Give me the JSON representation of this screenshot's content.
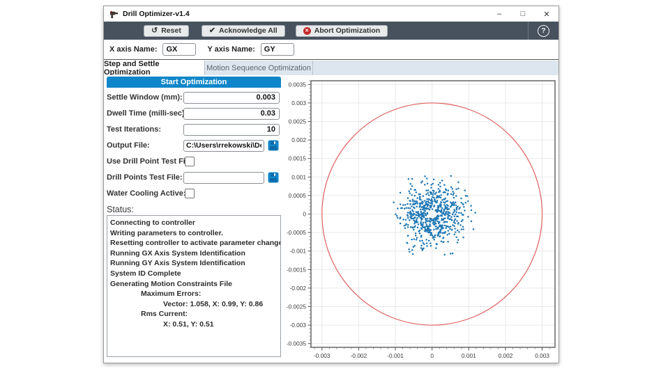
{
  "window": {
    "title": "Drill Optimizer-v1.4",
    "controls": {
      "minimize": "–",
      "maximize": "□",
      "close": "✕"
    }
  },
  "toolbar": {
    "reset_label": "Reset",
    "reset_icon": "↺",
    "acknowledge_label": "Acknowledge All",
    "acknowledge_icon": "✔",
    "abort_label": "Abort Optimization",
    "abort_icon": "✕",
    "help_label": "?"
  },
  "axis_names": {
    "x_label": "X axis Name:",
    "x_value": "GX",
    "y_label": "Y axis Name:",
    "y_value": "GY"
  },
  "tabs": [
    {
      "label": "Step and Settle Optimization",
      "active": true
    },
    {
      "label": "Motion Sequence Optimization",
      "active": false
    }
  ],
  "panel": {
    "start_button": "Start Optimization",
    "fields": [
      {
        "label": "Settle Window (mm):",
        "value": "0.003",
        "type": "input"
      },
      {
        "label": "Dwell Time (milli-sec):",
        "value": "0.03",
        "type": "input"
      },
      {
        "label": "Test Iterations:",
        "value": "10",
        "type": "input"
      },
      {
        "label": "Output File:",
        "value": "C:\\Users\\rrekowski\\Docume",
        "type": "input-save"
      },
      {
        "label": "Use Drill Point Test File:",
        "checked": false,
        "type": "checkbox"
      },
      {
        "label": "Drill Points Test File:",
        "value": "",
        "type": "input-save"
      },
      {
        "label": "Water Cooling Active:",
        "checked": false,
        "type": "checkbox"
      }
    ],
    "status_label": "Status:",
    "status_lines": [
      {
        "text": "Connecting to controller",
        "indent": 0
      },
      {
        "text": "Writing parameters to controller.",
        "indent": 0
      },
      {
        "text": "Resetting controller to activate parameter changes.",
        "indent": 0
      },
      {
        "text": "Running GX Axis System Identification",
        "indent": 0
      },
      {
        "text": "Running GY Axis System Identification",
        "indent": 0
      },
      {
        "text": "System ID Complete",
        "indent": 0
      },
      {
        "text": "Generating Motion Constraints File",
        "indent": 0
      },
      {
        "text": "Maximum Errors:",
        "indent": 1
      },
      {
        "text": "Vector: 1.058, X: 0.99, Y: 0.86",
        "indent": 2
      },
      {
        "text": "Rms Current:",
        "indent": 1
      },
      {
        "text": "X: 0.51, Y: 0.51",
        "indent": 2
      }
    ]
  },
  "chart_data": {
    "type": "scatter",
    "title": "",
    "xlabel": "",
    "ylabel": "",
    "xlim": [
      -0.0033,
      0.00335
    ],
    "ylim": [
      -0.0036,
      0.0036
    ],
    "x_ticks": [
      -0.003,
      -0.002,
      -0.001,
      0,
      0.001,
      0.002,
      0.003
    ],
    "x_tick_labels": [
      "-0.003",
      "-0.002",
      "-0.001",
      "0",
      "0.001",
      "0.002",
      "0.003"
    ],
    "y_ticks": [
      0.0035,
      0.003,
      0.0025,
      0.002,
      0.0015,
      0.001,
      0.0005,
      0,
      -0.0005,
      -0.001,
      -0.0015,
      -0.002,
      -0.0025,
      -0.003,
      -0.0035
    ],
    "y_tick_labels": [
      "0.0035",
      "0.003",
      "0.0025",
      "0.002",
      "0.0015",
      "0.001",
      "0.0005",
      "0",
      "-0.0005",
      "-0.001",
      "-0.0015",
      "-0.002",
      "-0.0025",
      "-0.003",
      "-0.0035"
    ],
    "x_minor_step": 0.0002,
    "y_minor_step": 0.0001,
    "grid": true,
    "grid_color": "#e9e9e9",
    "series": [
      {
        "name": "settle-window-boundary",
        "kind": "circle",
        "center": [
          0,
          0
        ],
        "radius": 0.003,
        "color": "#e06060"
      },
      {
        "name": "settle-test-points",
        "kind": "scatter-cloud",
        "color": "#1f77b4",
        "generator": {
          "seed": 11,
          "count": 640,
          "center": [
            0,
            0
          ],
          "sigma": 0.00042,
          "min_radius": 0.00012,
          "max_radius": 0.00122
        },
        "marker_px": 1.25
      }
    ]
  },
  "colors": {
    "toolbar_bg": "#47525e",
    "accent_blue": "#0f86c9",
    "save_icon_blue": "#1287ca",
    "abort_red": "#c42b2b",
    "tabstrip_bg": "#dde6ee",
    "scatter_blue": "#1f77b4",
    "circle_red": "#e06060"
  }
}
